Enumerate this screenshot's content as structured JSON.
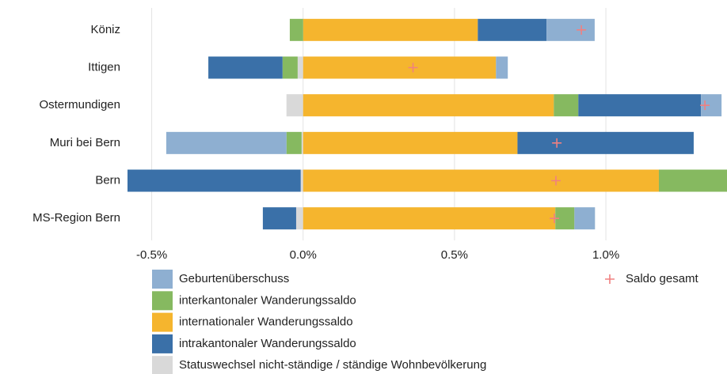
{
  "chart_data": {
    "type": "bar",
    "orientation": "horizontal",
    "stacked": true,
    "categories": [
      "Köniz",
      "Ittigen",
      "Ostermundigen",
      "Muri bei Bern",
      "Bern",
      "MS-Region Bern"
    ],
    "series": [
      {
        "name": "Geburtenüberschuss",
        "color": "#8eafd1",
        "values": [
          0.159,
          0.039,
          0.068,
          -0.397,
          0,
          0.068
        ]
      },
      {
        "name": "interkantonaler Wanderungssaldo",
        "color": "#86b960",
        "values": [
          -0.044,
          -0.05,
          0.081,
          -0.05,
          0.24,
          0.063
        ]
      },
      {
        "name": "internationaler Wanderungssaldo",
        "color": "#f5b52e",
        "values": [
          0.577,
          0.637,
          0.828,
          0.708,
          1.175,
          0.833
        ]
      },
      {
        "name": "intrakantonaler Wanderungssaldo",
        "color": "#3a70a8",
        "values": [
          0.227,
          -0.245,
          0.405,
          0.582,
          -0.572,
          -0.11
        ]
      },
      {
        "name": "Statuswechsel nicht-ständige / ständige Wohnbevölkerung",
        "color": "#d9d9d9",
        "values": [
          0,
          -0.018,
          -0.055,
          -0.005,
          -0.008,
          -0.023
        ]
      },
      {
        "name": "Saldo gesamt",
        "type": "scatter",
        "color": "#f08080",
        "values": [
          0.919,
          0.363,
          1.327,
          0.838,
          0.835,
          0.83
        ]
      }
    ],
    "xlim": [
      -0.58,
      1.4
    ],
    "xticks": [
      {
        "value": -0.5,
        "label": "-0.5%"
      },
      {
        "value": 0,
        "label": "0.0%"
      },
      {
        "value": 0.5,
        "label": "0.5%"
      },
      {
        "value": 1,
        "label": "1.0%"
      }
    ],
    "grid": true
  }
}
